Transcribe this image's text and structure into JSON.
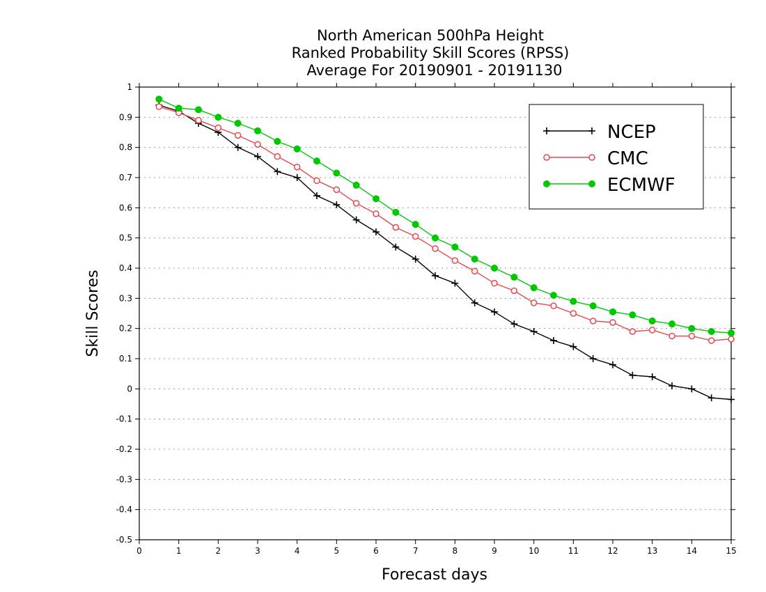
{
  "chart_data": {
    "type": "line",
    "title": [
      "North American 500hPa Height",
      "Ranked Probability Skill Scores (RPSS)",
      "Average For 20190901 - 20191130"
    ],
    "xlabel": "Forecast days",
    "ylabel": "Skill Scores",
    "xlim": [
      0,
      15
    ],
    "ylim": [
      -0.5,
      1
    ],
    "xticks": [
      "0",
      "1",
      "2",
      "3",
      "4",
      "5",
      "6",
      "7",
      "8",
      "9",
      "10",
      "11",
      "12",
      "13",
      "14",
      "15"
    ],
    "yticks": [
      "-0.5",
      "-0.4",
      "-0.3",
      "-0.2",
      "-0.1",
      "0",
      "0.1",
      "0.2",
      "0.3",
      "0.4",
      "0.5",
      "0.6",
      "0.7",
      "0.8",
      "0.9",
      "1"
    ],
    "grid": "horizontal dotted",
    "legend_position": "top-right",
    "x": [
      0.5,
      1,
      1.5,
      2,
      2.5,
      3,
      3.5,
      4,
      4.5,
      5,
      5.5,
      6,
      6.5,
      7,
      7.5,
      8,
      8.5,
      9,
      9.5,
      10,
      10.5,
      11,
      11.5,
      12,
      12.5,
      13,
      13.5,
      14,
      14.5,
      15
    ],
    "series": [
      {
        "name": "NCEP",
        "color": "#000000",
        "marker": "plus",
        "values": [
          0.94,
          0.92,
          0.88,
          0.85,
          0.8,
          0.77,
          0.72,
          0.7,
          0.64,
          0.61,
          0.56,
          0.52,
          0.47,
          0.43,
          0.375,
          0.35,
          0.285,
          0.255,
          0.215,
          0.19,
          0.16,
          0.14,
          0.1,
          0.08,
          0.045,
          0.04,
          0.01,
          0.0,
          -0.03,
          -0.035
        ]
      },
      {
        "name": "CMC",
        "color": "#e8474b",
        "marker": "open-circle",
        "values": [
          0.935,
          0.915,
          0.89,
          0.865,
          0.84,
          0.81,
          0.77,
          0.735,
          0.69,
          0.66,
          0.615,
          0.58,
          0.535,
          0.505,
          0.465,
          0.425,
          0.39,
          0.35,
          0.325,
          0.285,
          0.275,
          0.25,
          0.225,
          0.22,
          0.19,
          0.195,
          0.175,
          0.175,
          0.16,
          0.165
        ]
      },
      {
        "name": "ECMWF",
        "color": "#00c800",
        "marker": "filled-circle",
        "values": [
          0.96,
          0.93,
          0.925,
          0.9,
          0.88,
          0.855,
          0.82,
          0.795,
          0.755,
          0.715,
          0.675,
          0.63,
          0.585,
          0.545,
          0.5,
          0.47,
          0.43,
          0.4,
          0.37,
          0.335,
          0.31,
          0.29,
          0.275,
          0.255,
          0.245,
          0.225,
          0.215,
          0.2,
          0.19,
          0.185
        ]
      }
    ]
  }
}
